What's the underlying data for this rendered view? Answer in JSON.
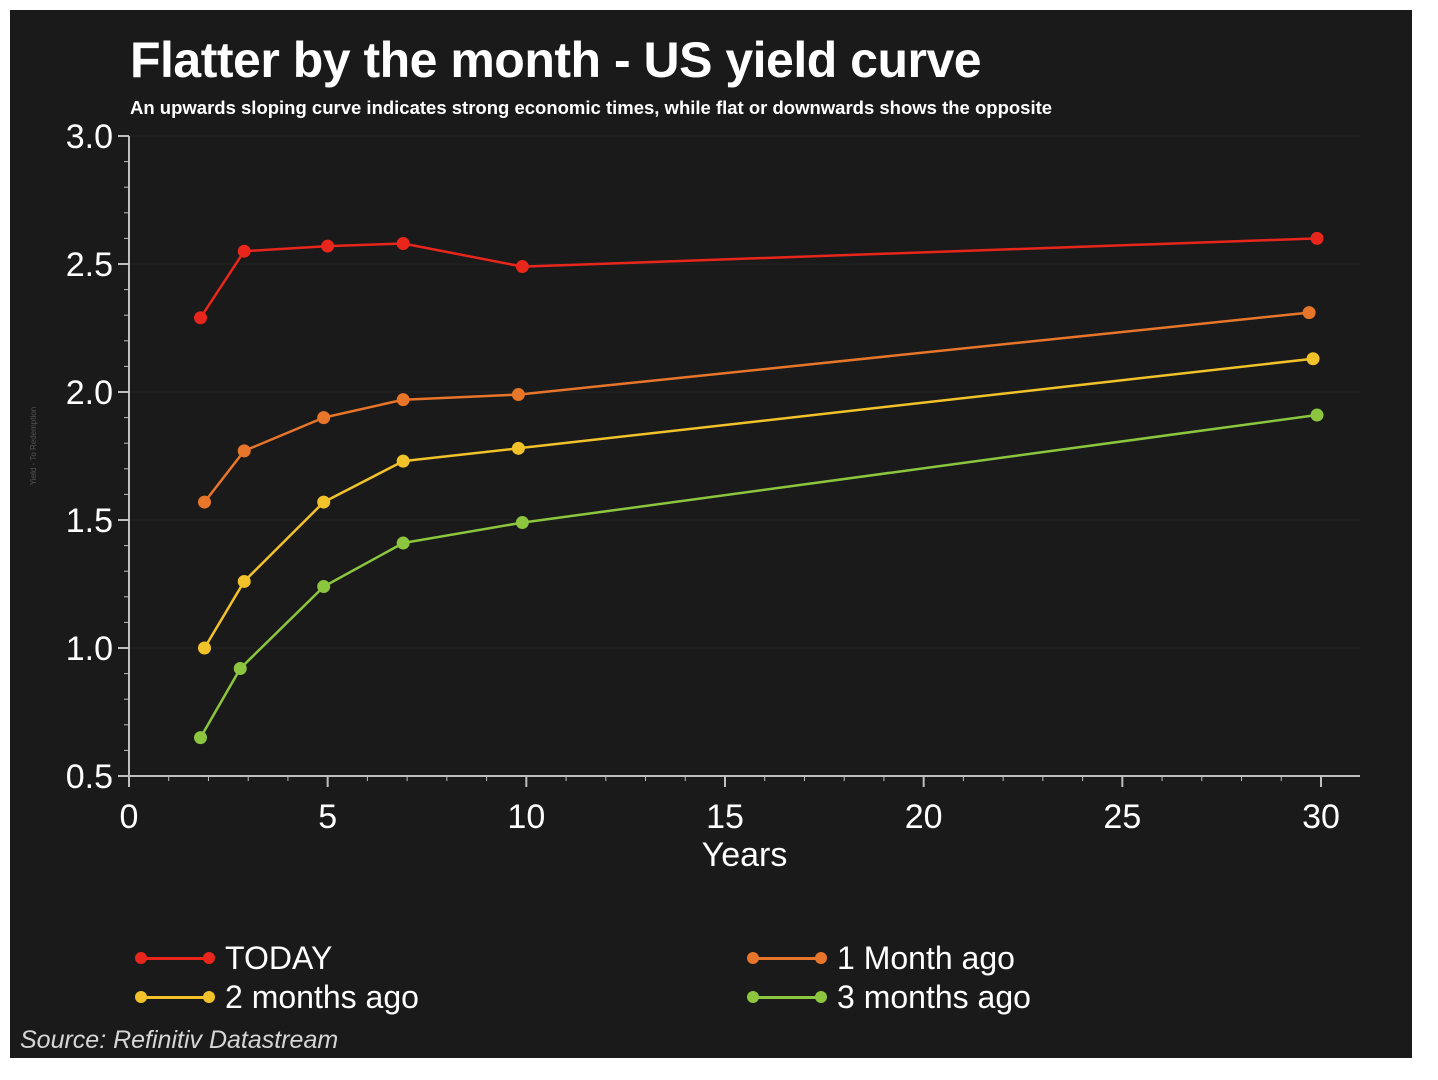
{
  "header": {
    "title": "Flatter by the month - US yield curve",
    "subtitle": "An upwards sloping curve indicates strong economic times, while flat or downwards shows the opposite"
  },
  "footer": {
    "source": "Source: Refinitiv Datastream"
  },
  "chart_data": {
    "type": "line",
    "title": "Flatter by the month - US yield curve",
    "subtitle": "An upwards sloping curve indicates strong economic times, while flat or downwards shows the opposite",
    "xlabel": "Years",
    "ylabel": "Yield - To Redemption",
    "xlim": [
      0,
      30
    ],
    "ylim": [
      0.5,
      3.0
    ],
    "x_ticks": [
      0,
      5,
      10,
      15,
      20,
      25,
      30
    ],
    "y_ticks": [
      0.5,
      1.0,
      1.5,
      2.0,
      2.5,
      3.0
    ],
    "y_tick_labels": [
      "0.5",
      "1.0",
      "1.5",
      "2.0",
      "2.5",
      "3.0"
    ],
    "grid": false,
    "legend_position": "bottom",
    "series": [
      {
        "name": "TODAY",
        "color": "#e8261c",
        "x": [
          1.8,
          2.9,
          5,
          6.9,
          9.9,
          29.9
        ],
        "y": [
          2.29,
          2.55,
          2.57,
          2.58,
          2.49,
          2.6
        ]
      },
      {
        "name": "1 Month ago",
        "color": "#e8762a",
        "x": [
          1.9,
          2.9,
          4.9,
          6.9,
          9.8,
          29.7
        ],
        "y": [
          1.57,
          1.77,
          1.9,
          1.97,
          1.99,
          2.31
        ]
      },
      {
        "name": "2 months ago",
        "color": "#f2c22a",
        "x": [
          1.9,
          2.9,
          4.9,
          6.9,
          9.8,
          29.8
        ],
        "y": [
          1.0,
          1.26,
          1.57,
          1.73,
          1.78,
          2.13
        ]
      },
      {
        "name": "3 months ago",
        "color": "#8cc63e",
        "x": [
          1.8,
          2.8,
          4.9,
          6.9,
          9.9,
          29.9
        ],
        "y": [
          0.65,
          0.92,
          1.24,
          1.41,
          1.49,
          1.91
        ]
      }
    ]
  }
}
